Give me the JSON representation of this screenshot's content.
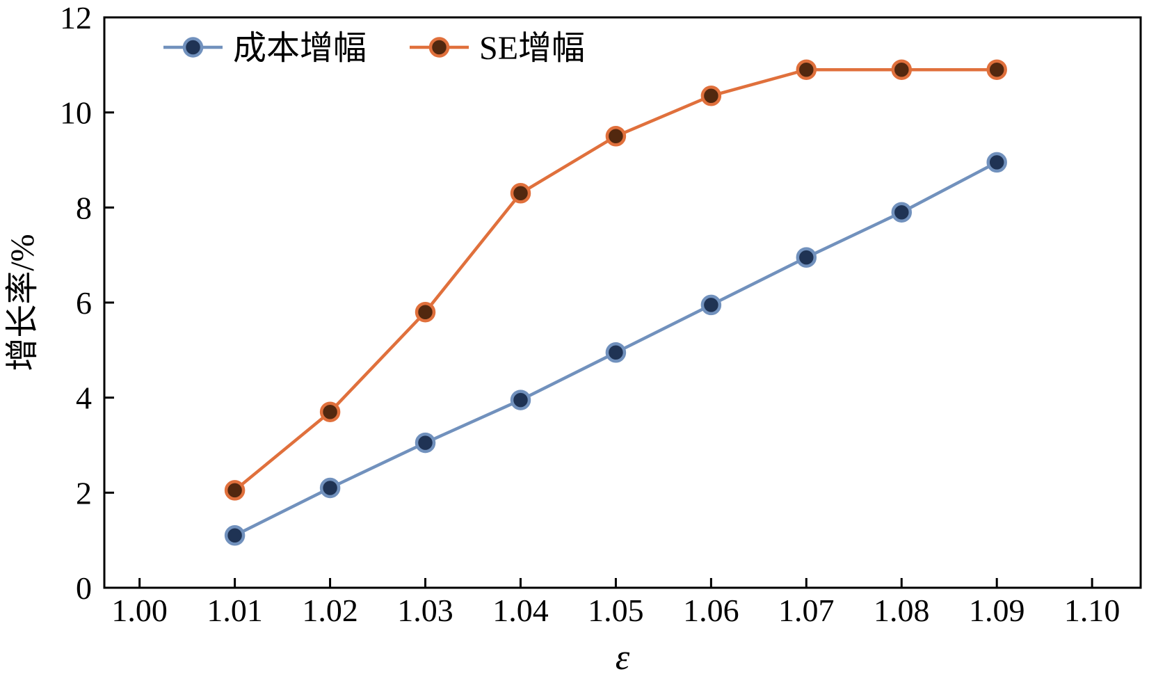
{
  "figure": {
    "background": "#ffffff",
    "axis_color": "#000000"
  },
  "chart_data": {
    "type": "line",
    "title": "",
    "xlabel": "ε",
    "ylabel": "增长率/%",
    "xlim": [
      1.0,
      1.1
    ],
    "ylim": [
      0,
      12
    ],
    "grid": false,
    "legend_position": "top-left-inside",
    "x_ticks": [
      1.0,
      1.01,
      1.02,
      1.03,
      1.04,
      1.05,
      1.06,
      1.07,
      1.08,
      1.09,
      1.1
    ],
    "x_tick_labels": [
      "1.00",
      "1.01",
      "1.02",
      "1.03",
      "1.04",
      "1.05",
      "1.06",
      "1.07",
      "1.08",
      "1.09",
      "1.10"
    ],
    "y_ticks": [
      0,
      2,
      4,
      6,
      8,
      10,
      12
    ],
    "y_tick_labels": [
      "0",
      "2",
      "4",
      "6",
      "8",
      "10",
      "12"
    ],
    "x": [
      1.01,
      1.02,
      1.03,
      1.04,
      1.05,
      1.06,
      1.07,
      1.08,
      1.09
    ],
    "series": [
      {
        "name": "成本增幅",
        "color": "#7191bd",
        "marker_face": "#1f3354",
        "marker": "circle",
        "values": [
          1.1,
          2.1,
          3.05,
          3.95,
          4.95,
          5.95,
          6.95,
          7.9,
          8.95
        ]
      },
      {
        "name": "SE增幅",
        "color": "#e0703c",
        "marker_face": "#52280f",
        "marker": "circle",
        "values": [
          2.05,
          3.7,
          5.8,
          8.3,
          9.5,
          10.35,
          10.9,
          10.9,
          10.9
        ]
      }
    ]
  }
}
